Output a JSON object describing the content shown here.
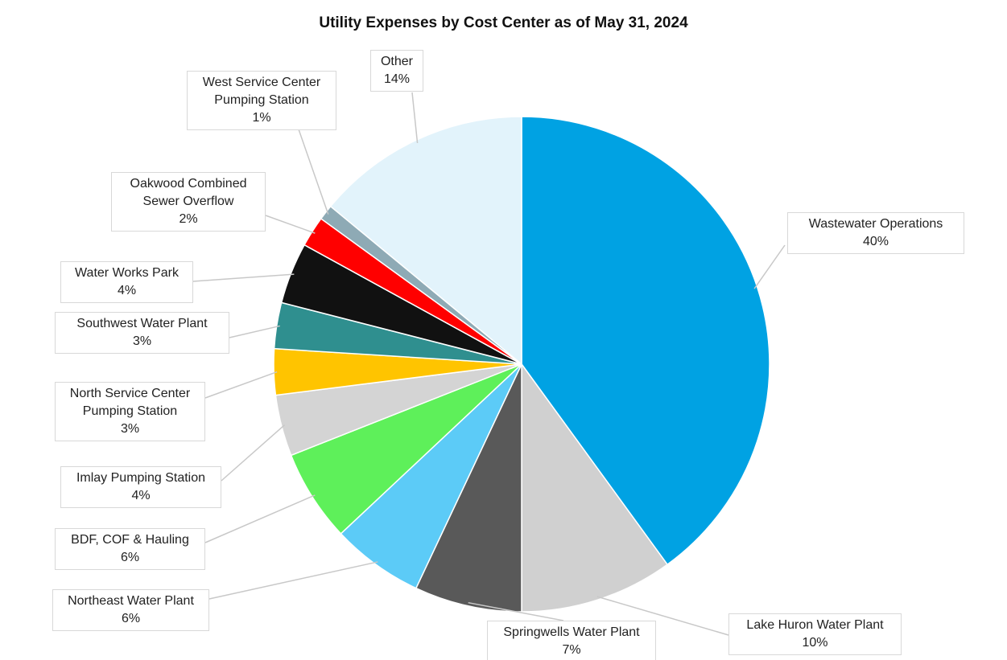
{
  "chart_data": {
    "type": "pie",
    "title": "Utility Expenses by Cost Center as of May 31, 2024",
    "categories": [
      "Wastewater Operations",
      "Lake Huron Water Plant",
      "Springwells Water Plant",
      "Northeast Water Plant",
      "BDF, COF & Hauling",
      "Imlay Pumping Station",
      "North Service Center Pumping Station",
      "Southwest Water Plant",
      "Water Works Park",
      "Oakwood Combined Sewer Overflow",
      "West Service Center Pumping Station",
      "Other"
    ],
    "values": [
      40,
      10,
      7,
      6,
      6,
      4,
      3,
      3,
      4,
      2,
      1,
      14
    ],
    "value_labels": [
      "40%",
      "10%",
      "7%",
      "6%",
      "6%",
      "4%",
      "3%",
      "3%",
      "4%",
      "2%",
      "1%",
      "14%"
    ],
    "colors": [
      "#00a2e3",
      "#d0d0d0",
      "#595959",
      "#5ccbf7",
      "#5ef05a",
      "#d4d4d4",
      "#ffc400",
      "#2f8f8f",
      "#111111",
      "#ff0000",
      "#8eaab5",
      "#e2f3fb"
    ]
  }
}
